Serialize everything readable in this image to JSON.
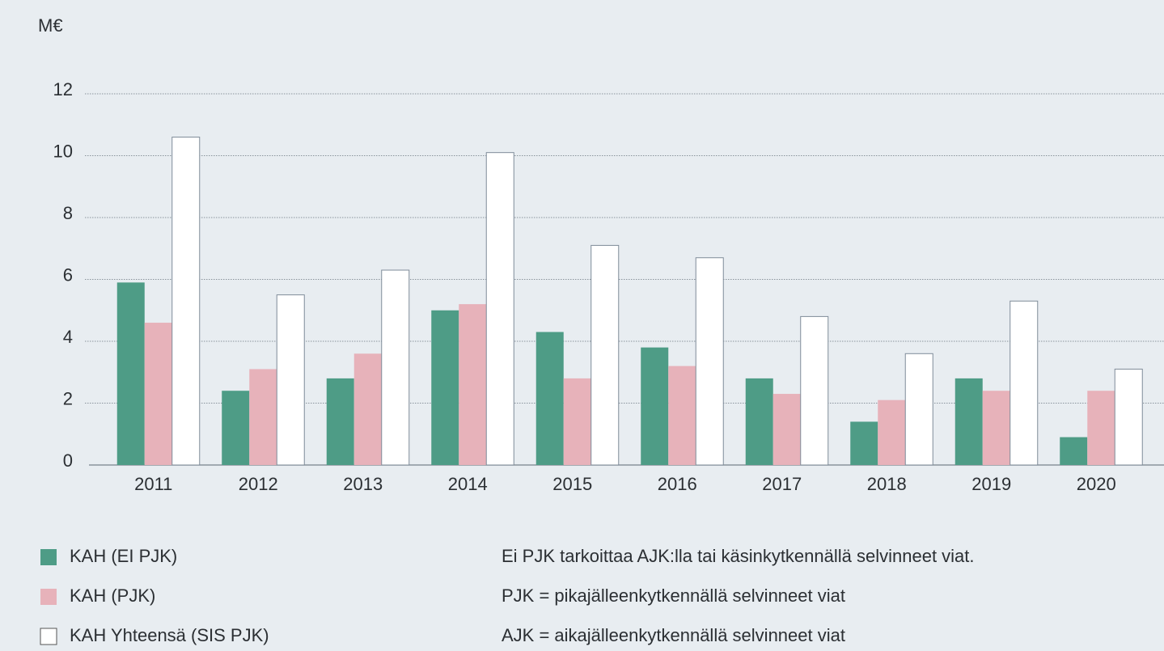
{
  "chart_data": {
    "type": "bar",
    "y_label": "M€",
    "categories": [
      "2011",
      "2012",
      "2013",
      "2014",
      "2015",
      "2016",
      "2017",
      "2018",
      "2019",
      "2020"
    ],
    "series": [
      {
        "name": "KAH (EI PJK)",
        "color": "#4e9c86",
        "values": [
          5.9,
          2.4,
          2.8,
          5.0,
          4.3,
          3.8,
          2.8,
          1.4,
          2.8,
          0.9
        ]
      },
      {
        "name": "KAH (PJK)",
        "color": "#e7b2ba",
        "values": [
          4.6,
          3.1,
          3.6,
          5.2,
          2.8,
          3.2,
          2.3,
          2.1,
          2.4,
          2.4
        ]
      },
      {
        "name": "KAH Yhteensä (SIS PJK)",
        "color": "#ffffff",
        "values": [
          10.6,
          5.5,
          6.3,
          10.1,
          7.1,
          6.7,
          4.8,
          3.6,
          5.3,
          3.1
        ]
      }
    ],
    "ylim": [
      0,
      12
    ],
    "yticks": [
      0,
      2,
      4,
      6,
      8,
      10,
      12
    ],
    "grid": true,
    "notes": [
      "Ei PJK tarkoittaa AJK:lla tai käsinkytkennällä selvinneet viat.",
      "PJK = pikajälleenkytkennällä selvinneet viat",
      "AJK = aikajälleenkytkennällä selvinneet viat"
    ]
  }
}
